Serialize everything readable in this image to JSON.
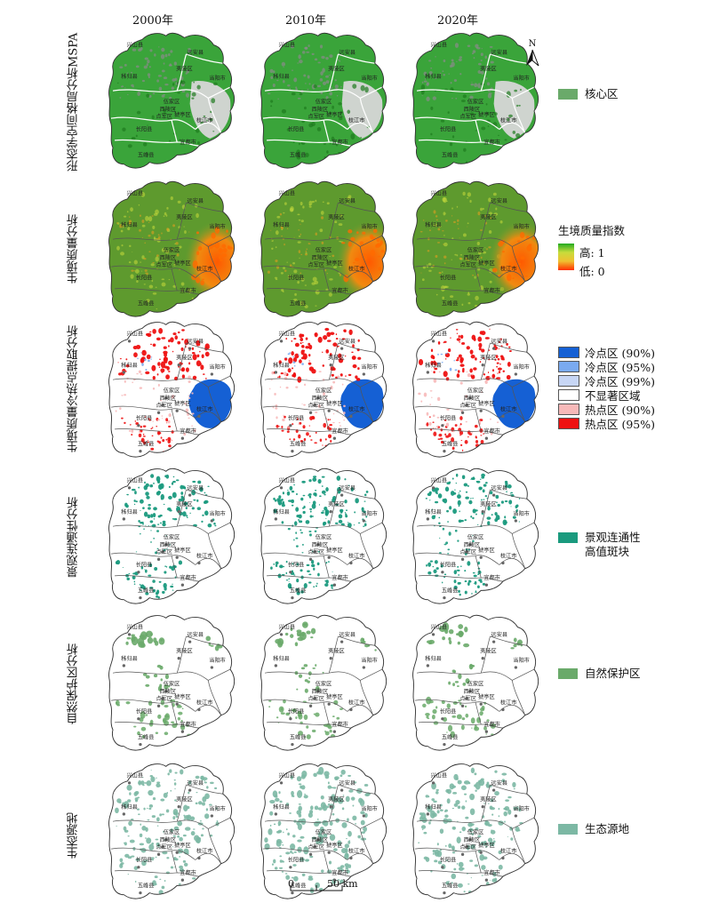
{
  "columns": [
    "2000年",
    "2010年",
    "2020年"
  ],
  "rows": [
    {
      "id": "mspa",
      "label": "形态学空间格局分析MSPA",
      "style": "mspa"
    },
    {
      "id": "quality",
      "label": "生境质量分析",
      "style": "quality"
    },
    {
      "id": "hotspot",
      "label": "生境质量冷热点提取分析",
      "style": "hotspot"
    },
    {
      "id": "connectivity",
      "label": "景观连通性分析",
      "style": "connectivity"
    },
    {
      "id": "reserve",
      "label": "自然保护区分析",
      "style": "reserve"
    },
    {
      "id": "source",
      "label": "生态源地",
      "style": "source"
    }
  ],
  "place_names": {
    "xingshan": "兴山县",
    "yuanan": "远安县",
    "zigui": "秭归县",
    "yiling": "夷陵区",
    "dangyang": "当阳市",
    "wujia": "伍家区",
    "xiling": "西陵区",
    "dianjun": "点军区",
    "xiaoting": "猇亭区",
    "zhijiang": "枝江市",
    "changyang": "长阳县",
    "yidu": "宜都市",
    "wufeng": "五峰县"
  },
  "legend": {
    "mspa": {
      "label": "核心区",
      "color": "#6aaa6a"
    },
    "quality": {
      "title": "生境质量指数",
      "high": "高: 1",
      "low": "低: 0"
    },
    "hotspot": [
      {
        "label": "冷点区 (90%)",
        "color": "#1560d4"
      },
      {
        "label": "冷点区 (95%)",
        "color": "#7aaaf0"
      },
      {
        "label": "冷点区 (99%)",
        "color": "#c7d6f5"
      },
      {
        "label": "不显著区域",
        "color": "#ffffff"
      },
      {
        "label": "热点区 (90%)",
        "color": "#f7b9b9"
      },
      {
        "label": "热点区 (95%)",
        "color": "#ee1111"
      }
    ],
    "connectivity": {
      "label": "景观连通性\n高值斑块",
      "line1": "景观连通性",
      "line2": "高值斑块",
      "color": "#1a9a7e"
    },
    "reserve": {
      "label": "自然保护区",
      "color": "#6aaa6a"
    },
    "source": {
      "label": "生态源地",
      "color": "#7cb8a4"
    }
  },
  "north_label": "N",
  "scale_bar": {
    "zero": "0",
    "value": "50 km"
  }
}
